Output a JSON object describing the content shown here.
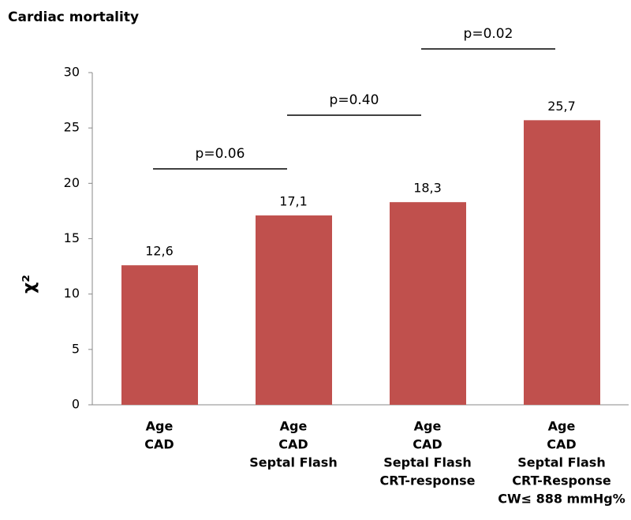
{
  "chart_data": {
    "type": "bar",
    "title": "Cardiac mortality",
    "y_label": "χ²",
    "categories": [
      [
        "Age",
        "CAD"
      ],
      [
        "Age",
        "CAD",
        "Septal Flash"
      ],
      [
        "Age",
        "CAD",
        "Septal Flash",
        "CRT-response"
      ],
      [
        "Age",
        "CAD",
        "Septal Flash",
        "CRT-Response",
        "CW≤ 888 mmHg%"
      ]
    ],
    "values": [
      12.6,
      17.1,
      18.3,
      25.7
    ],
    "value_labels": [
      "12,6",
      "17,1",
      "18,3",
      "25,7"
    ],
    "color": "#c0504d",
    "ylim": [
      0,
      30
    ],
    "yticks": [
      0,
      5,
      10,
      15,
      20,
      25,
      30
    ],
    "annotations": [
      "p=0.06",
      "p=0.40",
      "p=0.02"
    ]
  }
}
